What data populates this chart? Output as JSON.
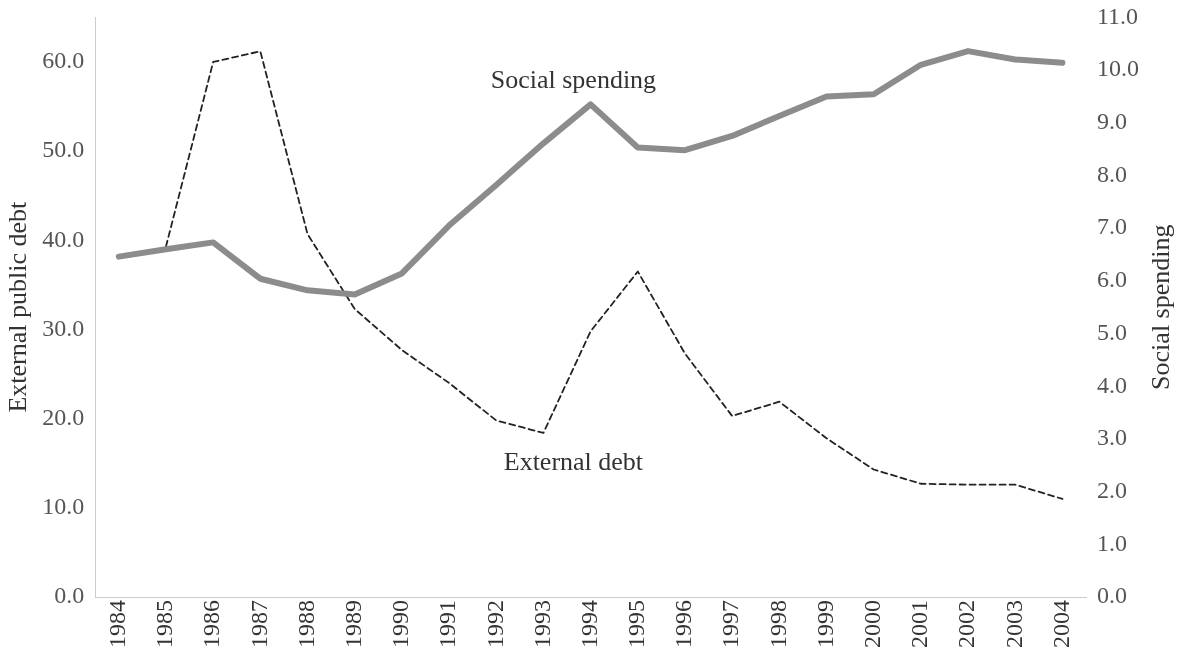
{
  "chart_data": {
    "type": "line",
    "ylabel": "External public debt",
    "y2label": "Social spending",
    "categories": [
      "1984",
      "1985",
      "1986",
      "1987",
      "1988",
      "1989",
      "1990",
      "1991",
      "1992",
      "1993",
      "1994",
      "1995",
      "1996",
      "1997",
      "1998",
      "1999",
      "2000",
      "2001",
      "2002",
      "2003",
      "2004"
    ],
    "series": [
      {
        "name": "Social spending",
        "color": "#8c8c8c",
        "axis": "y2",
        "line_style": "solid",
        "values": [
          6.46,
          6.6,
          6.73,
          6.04,
          5.82,
          5.74,
          6.14,
          7.05,
          7.82,
          8.61,
          9.35,
          8.53,
          8.48,
          8.75,
          9.13,
          9.5,
          9.54,
          10.1,
          10.36,
          10.2,
          10.14
        ]
      },
      {
        "name": "External debt",
        "color": "#222222",
        "line_style": "dashed",
        "values": [
          null,
          39.3,
          60.0,
          61.2,
          40.7,
          32.3,
          27.7,
          24.0,
          19.8,
          18.4,
          29.8,
          36.5,
          27.3,
          20.3,
          21.9,
          17.8,
          14.3,
          12.7,
          12.6,
          12.6,
          11.0
        ]
      }
    ],
    "ylim": [
      0,
      65
    ],
    "yticks": [
      {
        "value": 0,
        "label": "0.0"
      },
      {
        "value": 10,
        "label": "10.0"
      },
      {
        "value": 20,
        "label": "20.0"
      },
      {
        "value": 30,
        "label": "30.0"
      },
      {
        "value": 40,
        "label": "40.0"
      },
      {
        "value": 50,
        "label": "50.0"
      },
      {
        "value": 60,
        "label": "60.0"
      }
    ],
    "y2lim": [
      0,
      11
    ],
    "y2ticks": [
      {
        "value": 0,
        "label": "0.0"
      },
      {
        "value": 1,
        "label": "1.0"
      },
      {
        "value": 2,
        "label": "2.0"
      },
      {
        "value": 3,
        "label": "3.0"
      },
      {
        "value": 4,
        "label": "4.0"
      },
      {
        "value": 5,
        "label": "5.0"
      },
      {
        "value": 6,
        "label": "6.0"
      },
      {
        "value": 7,
        "label": "7.0"
      },
      {
        "value": 8,
        "label": "8.0"
      },
      {
        "value": 9,
        "label": "9.0"
      },
      {
        "value": 10,
        "label": "10.0"
      },
      {
        "value": 11,
        "label": "11.0"
      }
    ],
    "grid": false,
    "legend": false,
    "marker": "none"
  }
}
